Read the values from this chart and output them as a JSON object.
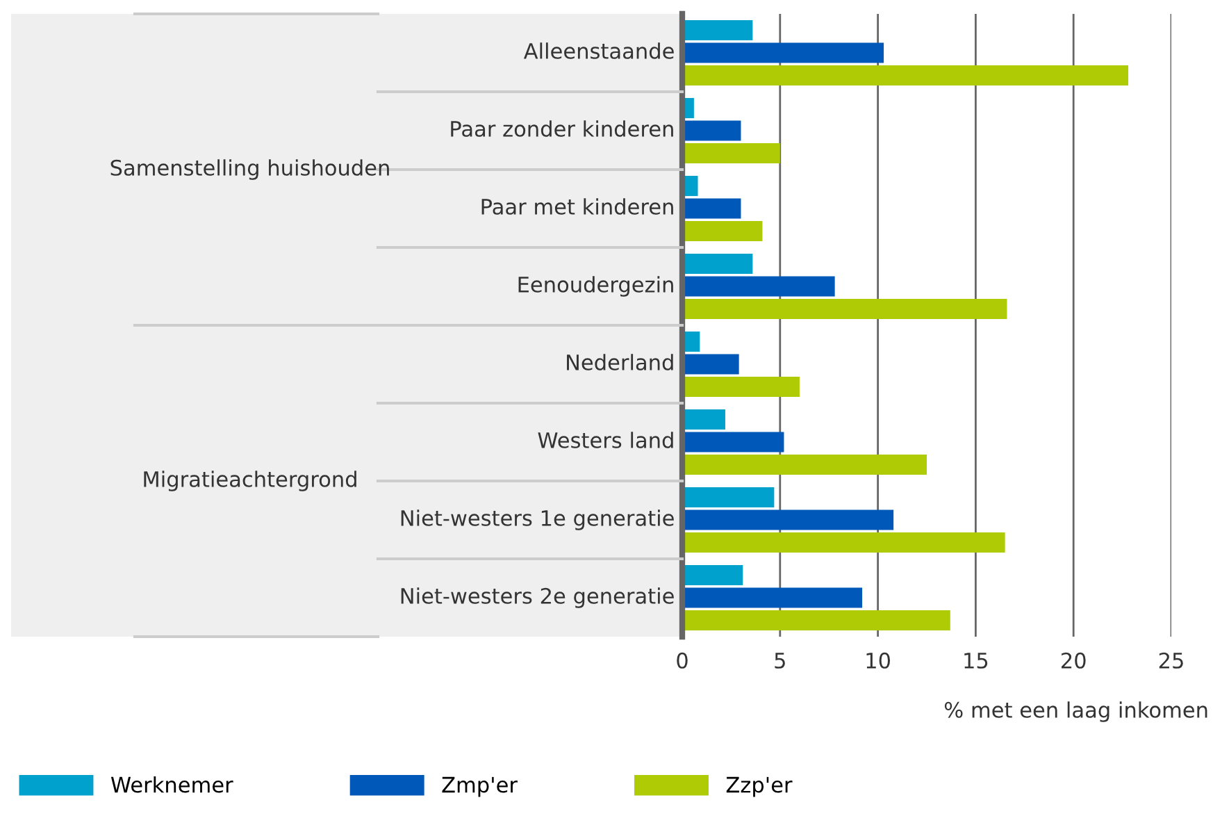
{
  "chart_data": {
    "type": "bar",
    "orientation": "horizontal",
    "xlabel": "% met een laag inkomen",
    "categories": [
      "Alleenstaande",
      "Paar zonder kinderen",
      "Paar met kinderen",
      "Eenoudergezin",
      "Nederland",
      "Westers land",
      "Niet-westers 1e generatie",
      "Niet-westers 2e generatie"
    ],
    "series": [
      {
        "name": "Werknemer",
        "color": "#00a1cd",
        "values": [
          3.6,
          0.6,
          0.8,
          3.6,
          0.9,
          2.2,
          4.7,
          3.1
        ]
      },
      {
        "name": "Zmp'er",
        "color": "#0058b8",
        "values": [
          10.3,
          3.0,
          3.0,
          7.8,
          2.9,
          5.2,
          10.8,
          9.2
        ]
      },
      {
        "name": "Zzp'er",
        "color": "#afcb05",
        "values": [
          22.8,
          5.0,
          4.1,
          16.6,
          6.0,
          12.5,
          16.5,
          13.7
        ]
      }
    ],
    "annotations": [
      "Samenstelling huishouden",
      "Migratieachtergrond"
    ],
    "xlim": [
      0,
      25
    ],
    "xticks": [
      0,
      5,
      10,
      15,
      20,
      25
    ],
    "grid": "x",
    "legend": "bottom left"
  }
}
